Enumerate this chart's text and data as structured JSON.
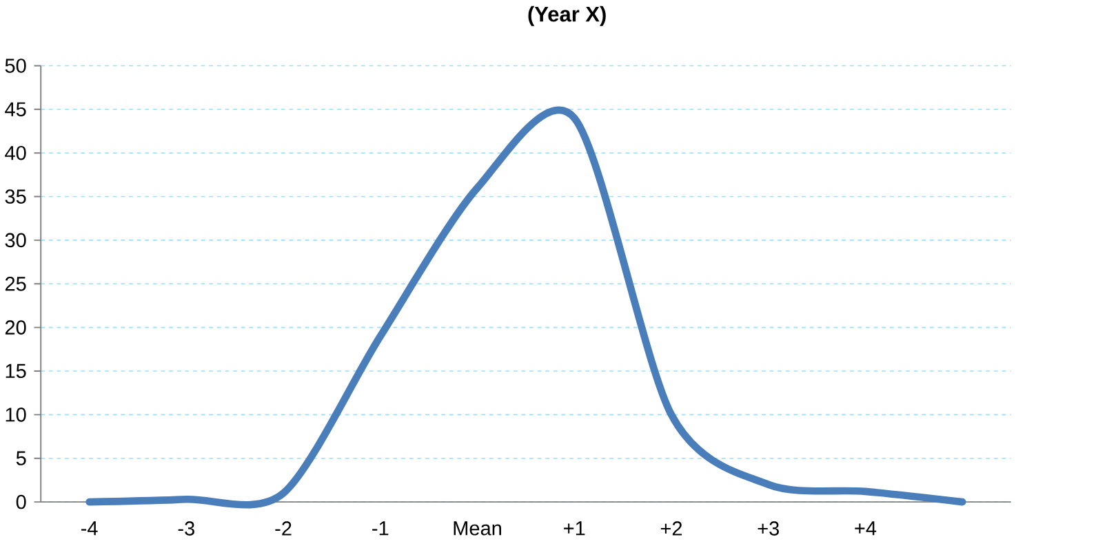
{
  "chart_data": {
    "type": "line",
    "title": "(Year X)",
    "categories": [
      "-4",
      "-3",
      "-2",
      "-1",
      "Mean",
      "+1",
      "+2",
      "+3",
      "+4",
      null
    ],
    "series": [
      {
        "color": "#4a7ebb",
        "values": [
          0,
          0.3,
          1,
          19,
          36,
          44,
          10,
          2,
          1.2,
          0
        ]
      }
    ],
    "ylim": [
      0,
      50
    ],
    "yticks": [
      0,
      5,
      10,
      15,
      20,
      25,
      30,
      35,
      40,
      45,
      50
    ],
    "grid": "y",
    "marker": "none",
    "line_style": "solid"
  }
}
